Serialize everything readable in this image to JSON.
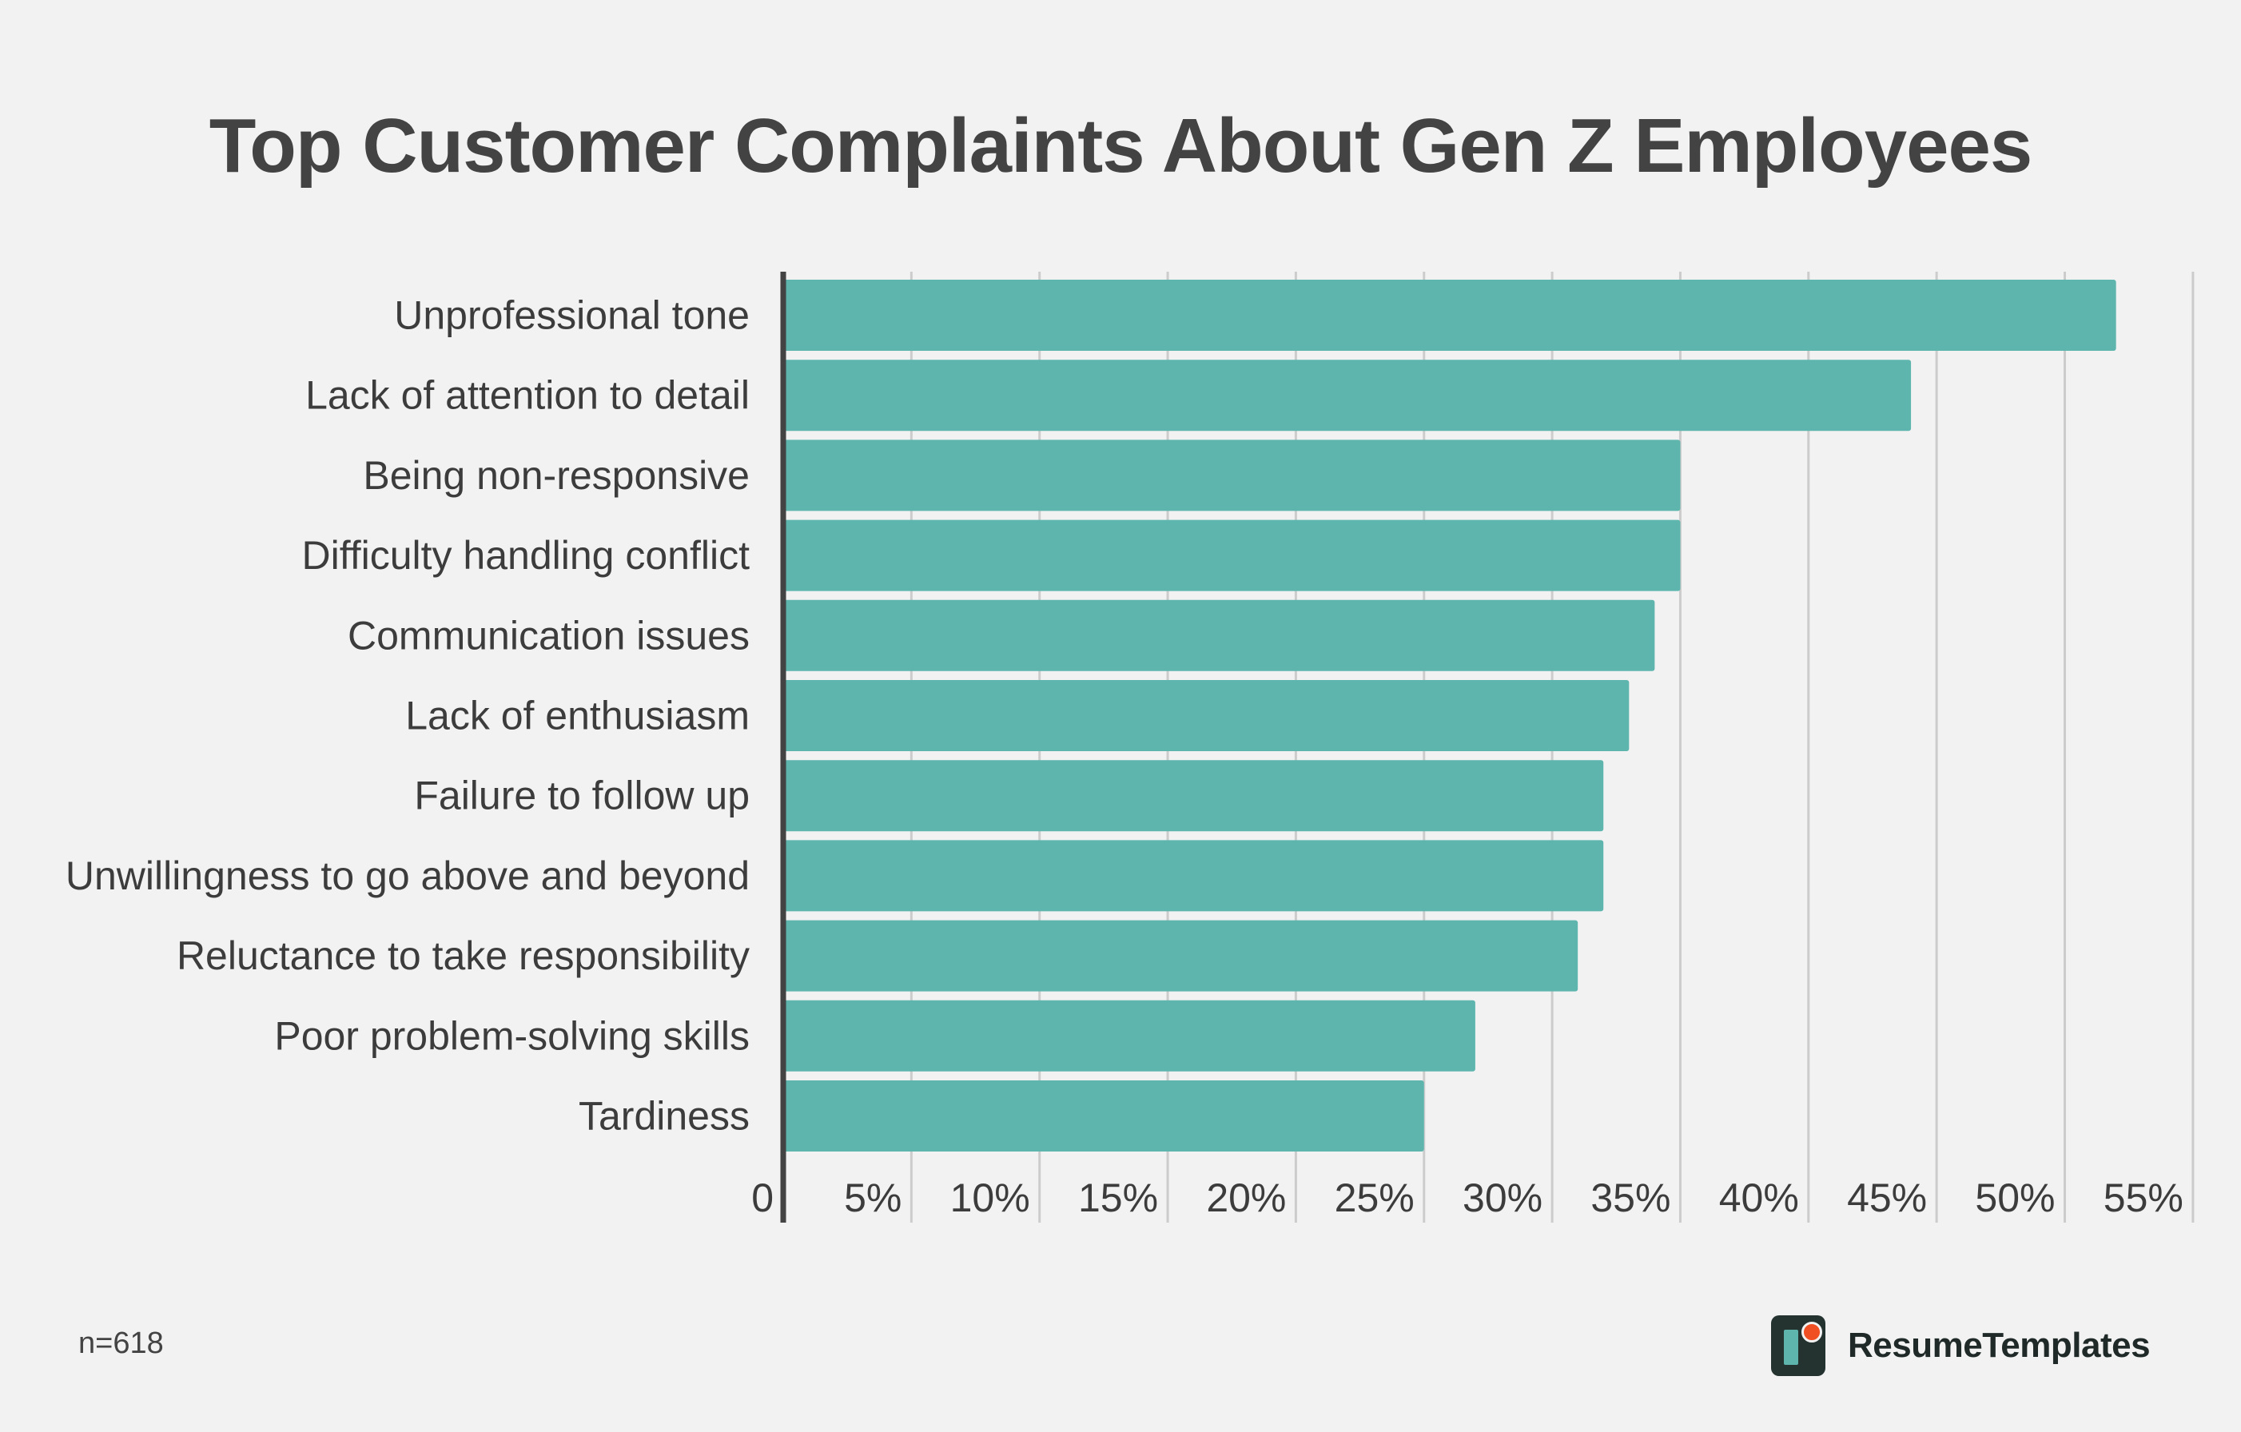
{
  "chart_data": {
    "type": "bar",
    "orientation": "horizontal",
    "title": "Top Customer Complaints About Gen Z Employees",
    "categories": [
      "Unprofessional tone",
      "Lack of attention to detail",
      "Being non-responsive",
      "Difficulty handling conflict",
      "Communication issues",
      "Lack of enthusiasm",
      "Failure to follow up",
      "Unwillingness to go above and beyond",
      "Reluctance to take responsibility",
      "Poor problem-solving skills",
      "Tardiness"
    ],
    "values": [
      52,
      44,
      35,
      35,
      34,
      33,
      32,
      32,
      31,
      27,
      25
    ],
    "unit": "%",
    "xlim": [
      0,
      55
    ],
    "xticks": [
      0,
      5,
      10,
      15,
      20,
      25,
      30,
      35,
      40,
      45,
      50,
      55
    ],
    "xtick_labels": [
      "0",
      "5%",
      "10%",
      "15%",
      "20%",
      "25%",
      "30%",
      "35%",
      "40%",
      "45%",
      "50%",
      "55%"
    ],
    "grid": true,
    "bar_color": "#5db5ae",
    "grid_color": "#cccccc",
    "axis_color": "#434343"
  },
  "footer": {
    "sample_size": "n=618",
    "brand_name": "ResumeTemplates"
  },
  "colors": {
    "background": "#f2f2f2",
    "brand_dot": "#f04e23",
    "brand_dark": "#243230"
  }
}
